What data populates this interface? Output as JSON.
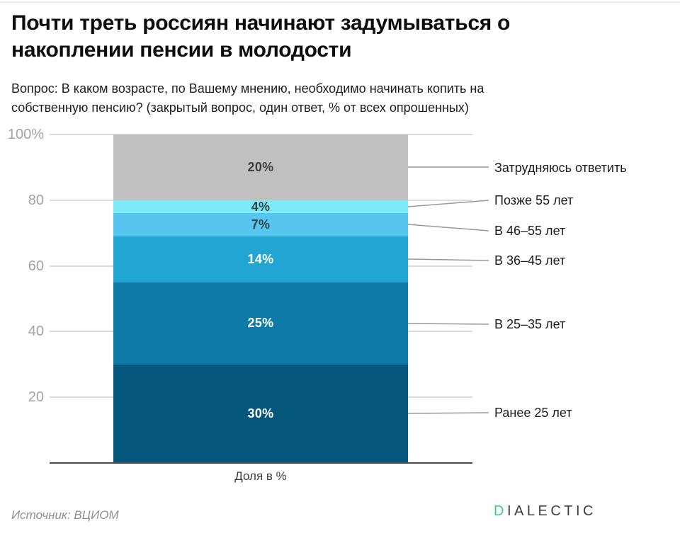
{
  "header": {
    "title": "Почти треть россиян начинают задумываться о накоплении пенсии в молодости",
    "subtitle": "Вопрос: В каком возрасте, по Вашему мнению, необходимо начинать копить на собственную пенсию? (закрытый вопрос, один ответ, % от всех опрошенных)"
  },
  "chart_data": {
    "type": "bar",
    "subtype": "single-stacked-column",
    "title": "Почти треть россиян начинают задумываться о накоплении пенсии в молодости",
    "xlabel": "Доля в %",
    "ylabel": "",
    "ylim": [
      0,
      100
    ],
    "yticks": [
      "100%",
      "80",
      "60",
      "40",
      "20"
    ],
    "ytick_values": [
      100,
      80,
      60,
      40,
      20
    ],
    "grid": true,
    "legend_position": "right-annotations",
    "categories": [
      "Доля в %"
    ],
    "segments_top_to_bottom": "see segments",
    "segments": [
      {
        "name": "Затрудняюсь ответить",
        "value": 20,
        "pct_label": "20%",
        "color": "#c0c0c0",
        "pct_label_color": "#3f3f3f"
      },
      {
        "name": "Позже 55 лет",
        "value": 4,
        "pct_label": "4%",
        "color": "#7deaf8",
        "pct_label_color": "#36454c"
      },
      {
        "name": "В 46–55 лет",
        "value": 7,
        "pct_label": "7%",
        "color": "#56c5f0",
        "pct_label_color": "#36454c"
      },
      {
        "name": "В 36–45 лет",
        "value": 14,
        "pct_label": "14%",
        "color": "#21a5d3",
        "pct_label_color": "#ffffff"
      },
      {
        "name": "В 25–35 лет",
        "value": 25,
        "pct_label": "25%",
        "color": "#0e7aa7",
        "pct_label_color": "#ffffff"
      },
      {
        "name": "Ранее 25 лет",
        "value": 30,
        "pct_label": "30%",
        "color": "#05567b",
        "pct_label_color": "#ffffff"
      }
    ]
  },
  "footer": {
    "source": "Источник: ВЦИОМ",
    "logo_first_letter": "D",
    "logo_rest": "IALECTIC",
    "logo_accent_color": "#42c98b"
  }
}
